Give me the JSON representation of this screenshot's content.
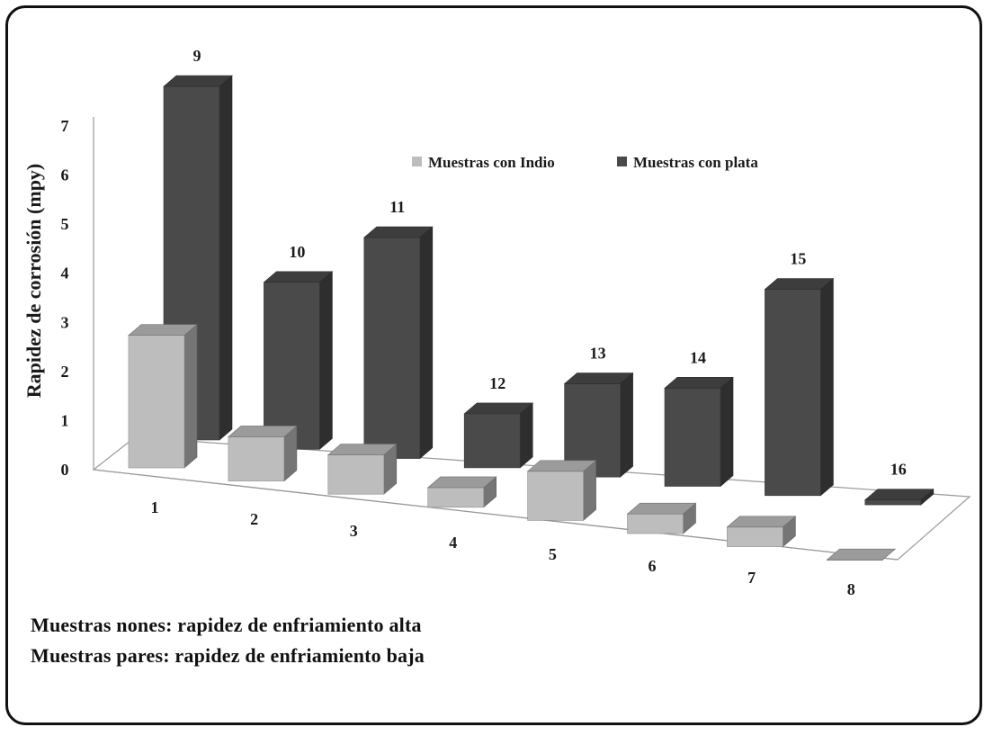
{
  "chart_data": {
    "type": "bar",
    "subtype": "3d-column",
    "ylabel": "Rapidez de corrosión (mpy)",
    "ylim": [
      0,
      7
    ],
    "yticks": [
      "0",
      "1",
      "2",
      "3",
      "4",
      "5",
      "6",
      "7"
    ],
    "grid": false,
    "legend_position": "top-right",
    "categories": [
      "1",
      "2",
      "3",
      "4",
      "5",
      "6",
      "7",
      "8"
    ],
    "series": [
      {
        "name": "Muestras con Indio",
        "color": "#bdbdbd",
        "sample_labels": [
          "1",
          "2",
          "3",
          "4",
          "5",
          "6",
          "7",
          "8"
        ],
        "values": [
          2.7,
          0.9,
          0.8,
          0.4,
          1.0,
          0.4,
          0.4,
          0.0
        ]
      },
      {
        "name": "Muestras con plata",
        "color": "#4a4a4a",
        "sample_labels": [
          "9",
          "10",
          "11",
          "12",
          "13",
          "14",
          "15",
          "16"
        ],
        "values": [
          7.2,
          3.4,
          4.5,
          1.1,
          1.9,
          2.0,
          4.2,
          0.1
        ]
      }
    ]
  },
  "notes": [
    "Muestras nones: rapidez de enfriamiento alta",
    "Muestras pares: rapidez de enfriamiento baja"
  ]
}
